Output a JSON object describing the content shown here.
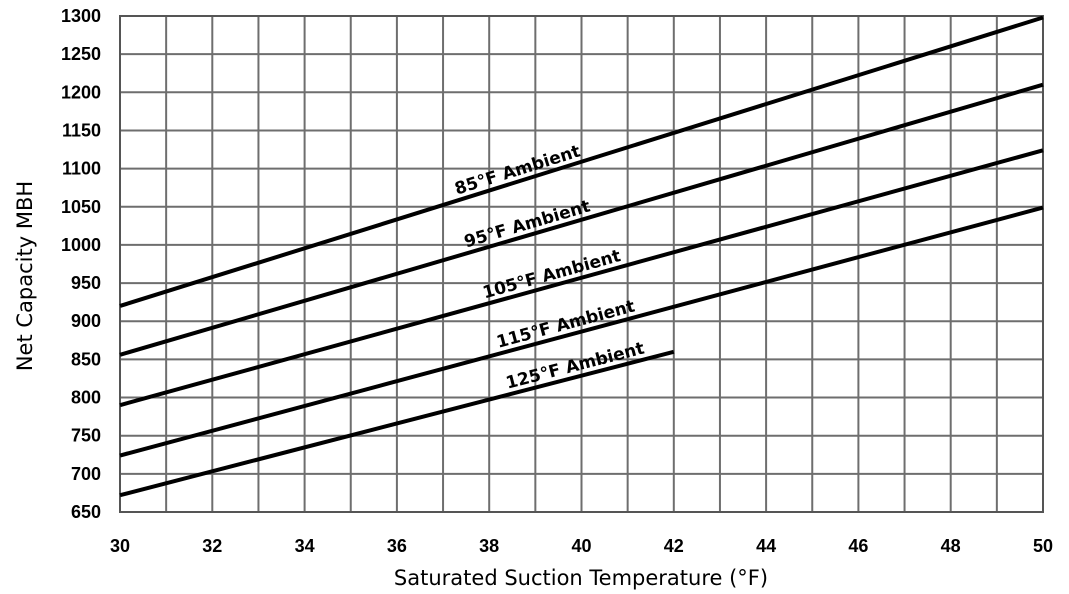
{
  "chart_data": {
    "type": "line",
    "title": "",
    "xlabel": "Saturated Suction Temperature (°F)",
    "ylabel": "Net Capacity MBH",
    "xlim": [
      30,
      50
    ],
    "ylim": [
      650,
      1300
    ],
    "x_grid_step": 1,
    "y_grid_step": 50,
    "grid": true,
    "legend": "inline labels on lines",
    "x_ticks": [
      "30",
      "32",
      "34",
      "36",
      "38",
      "40",
      "42",
      "44",
      "46",
      "48",
      "50"
    ],
    "y_ticks": [
      "650",
      "700",
      "750",
      "800",
      "850",
      "900",
      "950",
      "1000",
      "1050",
      "1100",
      "1150",
      "1200",
      "1250",
      "1300"
    ],
    "series": [
      {
        "name": "85°F Ambient",
        "x": [
          30,
          50
        ],
        "y": [
          920,
          1298
        ],
        "label_x": 37.3
      },
      {
        "name": "95°F Ambient",
        "x": [
          30,
          50
        ],
        "y": [
          856,
          1210
        ],
        "label_x": 37.5
      },
      {
        "name": "105°F Ambient",
        "x": [
          30,
          50
        ],
        "y": [
          790,
          1124
        ],
        "label_x": 37.9
      },
      {
        "name": "115°F Ambient",
        "x": [
          30,
          50
        ],
        "y": [
          724,
          1049
        ],
        "label_x": 38.2
      },
      {
        "name": "125°F Ambient",
        "x": [
          30,
          42
        ],
        "y": [
          672,
          860
        ],
        "label_x": 38.4
      }
    ]
  }
}
